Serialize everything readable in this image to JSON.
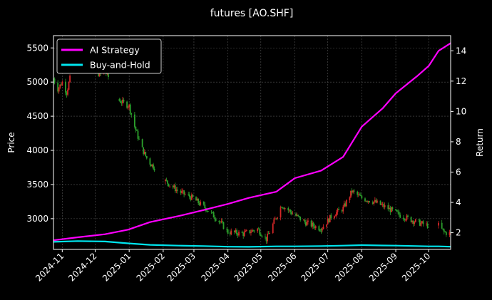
{
  "chart_data": {
    "type": "line",
    "title": "futures [AO.SHF]",
    "ylabel_left": "Price",
    "ylabel_right": "Return",
    "xlabel": "",
    "grid": true,
    "legend_placement": "top-left",
    "background": "#000000",
    "colors": {
      "ai_strategy": "#ff00ff",
      "buy_and_hold": "#00e5ee",
      "candle_up": "#d62728",
      "candle_down": "#2ca02c"
    },
    "x_range": [
      "2024-10-24",
      "2025-10-21"
    ],
    "y_left_range": [
      2550,
      5680
    ],
    "y_right_range": [
      0.9,
      15.0
    ],
    "x_ticks": [
      "2024-11",
      "2024-12",
      "2025-01",
      "2025-02",
      "2025-03",
      "2025-04",
      "2025-05",
      "2025-06",
      "2025-07",
      "2025-08",
      "2025-09",
      "2025-10"
    ],
    "y_left_ticks": [
      3000,
      3500,
      4000,
      4500,
      5000,
      5500
    ],
    "y_right_ticks": [
      2,
      4,
      6,
      8,
      10,
      12,
      14
    ],
    "series": [
      {
        "name": "AI Strategy",
        "axis": "right",
        "x": [
          "2024-10-24",
          "2024-11-15",
          "2024-12-10",
          "2024-12-31",
          "2025-01-20",
          "2025-02-15",
          "2025-03-10",
          "2025-04-01",
          "2025-04-20",
          "2025-05-15",
          "2025-06-01",
          "2025-06-25",
          "2025-07-15",
          "2025-08-01",
          "2025-08-20",
          "2025-09-01",
          "2025-09-20",
          "2025-10-01",
          "2025-10-10",
          "2025-10-21"
        ],
        "values": [
          1.5,
          1.7,
          1.9,
          2.2,
          2.7,
          3.1,
          3.5,
          3.9,
          4.3,
          4.7,
          5.6,
          6.1,
          7.0,
          9.0,
          10.2,
          11.2,
          12.3,
          13.0,
          14.0,
          14.5
        ]
      },
      {
        "name": "Buy-and-Hold",
        "axis": "right",
        "x": [
          "2024-10-24",
          "2024-11-15",
          "2024-12-10",
          "2024-12-31",
          "2025-01-20",
          "2025-02-15",
          "2025-03-10",
          "2025-04-01",
          "2025-04-20",
          "2025-05-15",
          "2025-06-01",
          "2025-06-25",
          "2025-07-15",
          "2025-08-01",
          "2025-08-20",
          "2025-09-01",
          "2025-09-20",
          "2025-10-01",
          "2025-10-10",
          "2025-10-21"
        ],
        "values": [
          1.4,
          1.45,
          1.42,
          1.3,
          1.2,
          1.15,
          1.12,
          1.08,
          1.07,
          1.1,
          1.1,
          1.12,
          1.15,
          1.18,
          1.16,
          1.15,
          1.12,
          1.1,
          1.1,
          1.08
        ]
      }
    ],
    "price_segments": [
      {
        "x": [
          "2024-10-24",
          "2024-10-28",
          "2024-11-01",
          "2024-11-05",
          "2024-11-08"
        ],
        "values": [
          5050,
          4900,
          5000,
          4850,
          5050
        ]
      },
      {
        "x": [
          "2024-12-01",
          "2024-12-05",
          "2024-12-10",
          "2024-12-14"
        ],
        "values": [
          5200,
          5100,
          5150,
          5050
        ]
      },
      {
        "x": [
          "2024-12-21",
          "2024-12-26",
          "2025-01-01",
          "2025-01-06",
          "2025-01-12",
          "2025-01-18",
          "2025-01-24"
        ],
        "values": [
          4750,
          4700,
          4650,
          4350,
          4050,
          3850,
          3750
        ]
      },
      {
        "x": [
          "2025-02-03",
          "2025-02-15",
          "2025-02-28",
          "2025-03-12",
          "2025-03-25",
          "2025-04-01"
        ],
        "values": [
          3550,
          3400,
          3300,
          3150,
          2950,
          2800
        ]
      },
      {
        "x": [
          "2025-04-03",
          "2025-04-15",
          "2025-04-28",
          "2025-05-06",
          "2025-05-13",
          "2025-05-20",
          "2025-05-28",
          "2025-06-10",
          "2025-06-25"
        ],
        "values": [
          2800,
          2780,
          2850,
          2700,
          2950,
          3200,
          3100,
          2950,
          2850
        ]
      },
      {
        "x": [
          "2025-06-25",
          "2025-07-05",
          "2025-07-15",
          "2025-07-23",
          "2025-08-01",
          "2025-08-12",
          "2025-08-25",
          "2025-09-05",
          "2025-09-20",
          "2025-09-30"
        ],
        "values": [
          2850,
          3050,
          3150,
          3400,
          3300,
          3250,
          3150,
          3050,
          2950,
          2900
        ]
      },
      {
        "x": [
          "2025-10-10",
          "2025-10-15",
          "2025-10-21"
        ],
        "values": [
          2900,
          2800,
          2780
        ]
      }
    ]
  }
}
